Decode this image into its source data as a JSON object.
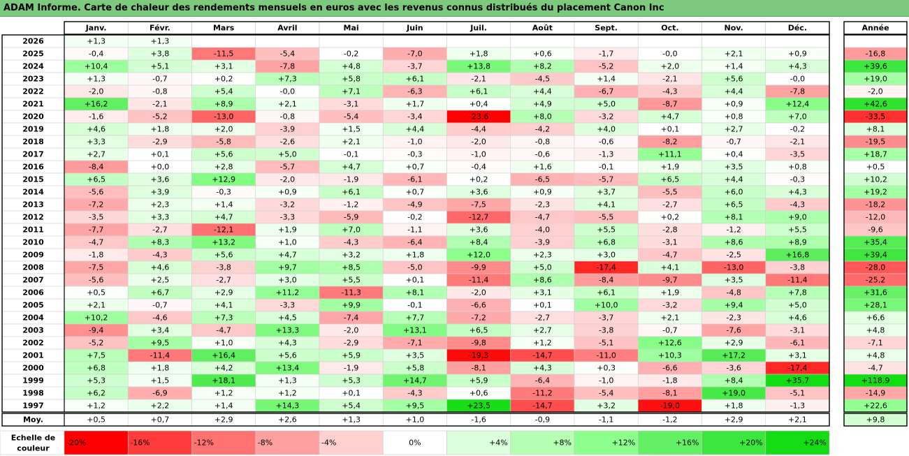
{
  "title": "ADAM Informe. Carte de chaleur des rendements mensuels en euros avec les revenus connus distribués du placement Canon Inc",
  "chart_data": {
    "type": "heatmap",
    "months": [
      "Janv.",
      "Févr.",
      "Mars",
      "Avril",
      "Mai",
      "Juin",
      "Juil.",
      "Août",
      "Sept.",
      "Oct.",
      "Nov.",
      "Déc."
    ],
    "year_column_label": "Année",
    "average_label": "Moy.",
    "rows": [
      {
        "year": "2026",
        "values": [
          "+1,3",
          "+1,3",
          null,
          null,
          null,
          null,
          null,
          null,
          null,
          null,
          null,
          null
        ],
        "annual": null
      },
      {
        "year": "2025",
        "values": [
          "-0,4",
          "+3,8",
          "-11,5",
          "-5,4",
          "-0,2",
          "-7,0",
          "+1,8",
          "+0,6",
          "-1,7",
          "-0,0",
          "+2,1",
          "+0,9"
        ],
        "annual": "-16,8"
      },
      {
        "year": "2024",
        "values": [
          "+10,4",
          "+5,1",
          "+3,1",
          "-7,8",
          "+4,8",
          "-3,7",
          "+13,8",
          "+8,2",
          "-5,2",
          "+2,0",
          "+1,4",
          "+4,3"
        ],
        "annual": "+39,6"
      },
      {
        "year": "2023",
        "values": [
          "+1,3",
          "-0,7",
          "+0,2",
          "+7,3",
          "+5,8",
          "+6,1",
          "-2,1",
          "-4,5",
          "+1,4",
          "-2,1",
          "+5,6",
          "-0,0"
        ],
        "annual": "+19,0"
      },
      {
        "year": "2022",
        "values": [
          "-2,0",
          "-0,8",
          "+5,4",
          "-0,0",
          "+7,1",
          "-6,3",
          "+6,1",
          "+4,4",
          "-6,7",
          "-4,3",
          "+4,4",
          "-7,8"
        ],
        "annual": "-2,0"
      },
      {
        "year": "2021",
        "values": [
          "+16,2",
          "-2,1",
          "+8,9",
          "+2,1",
          "-3,1",
          "+1,7",
          "+0,4",
          "+4,9",
          "+5,0",
          "-8,7",
          "+0,9",
          "+12,4"
        ],
        "annual": "+42,6"
      },
      {
        "year": "2020",
        "values": [
          "-1,6",
          "-5,2",
          "-13,0",
          "-0,8",
          "-5,4",
          "-3,4",
          "-23,6",
          "+8,0",
          "-3,2",
          "+4,7",
          "+0,8",
          "+7,0"
        ],
        "annual": "-33,5"
      },
      {
        "year": "2019",
        "values": [
          "+4,6",
          "+1,8",
          "+2,0",
          "-3,9",
          "+1,5",
          "+4,4",
          "-4,4",
          "-4,2",
          "+4,0",
          "+0,1",
          "+2,7",
          "-0,2"
        ],
        "annual": "+8,1"
      },
      {
        "year": "2018",
        "values": [
          "+3,3",
          "-2,9",
          "-5,8",
          "-2,6",
          "+2,1",
          "-1,0",
          "-2,0",
          "-0,8",
          "-0,6",
          "-8,2",
          "-0,7",
          "-2,1"
        ],
        "annual": "-19,5"
      },
      {
        "year": "2017",
        "values": [
          "+2,7",
          "+0,1",
          "+5,6",
          "+5,0",
          "-0,1",
          "-0,3",
          "-1,0",
          "-0,6",
          "-1,3",
          "+11,1",
          "+0,4",
          "-3,5"
        ],
        "annual": "+18,7"
      },
      {
        "year": "2016",
        "values": [
          "-8,4",
          "+0,0",
          "+2,8",
          "-5,7",
          "+4,7",
          "+0,7",
          "-0,4",
          "+1,6",
          "-0,1",
          "+1,9",
          "+3,5",
          "+0,8"
        ],
        "annual": "+0,5"
      },
      {
        "year": "2015",
        "values": [
          "+6,5",
          "+3,6",
          "+12,9",
          "-2,0",
          "-1,9",
          "-6,1",
          "+0,2",
          "-6,5",
          "-5,7",
          "+6,5",
          "+4,4",
          "-0,3"
        ],
        "annual": "+10,2"
      },
      {
        "year": "2014",
        "values": [
          "-5,6",
          "+3,9",
          "-0,3",
          "+0,9",
          "+6,1",
          "+0,7",
          "+3,6",
          "+0,9",
          "+3,7",
          "-5,5",
          "+6,0",
          "+4,3"
        ],
        "annual": "+19,2"
      },
      {
        "year": "2013",
        "values": [
          "-7,2",
          "+2,3",
          "+1,4",
          "-3,2",
          "-1,2",
          "-4,9",
          "-7,5",
          "-2,3",
          "+4,1",
          "-2,7",
          "+6,5",
          "-4,3"
        ],
        "annual": "-18,2"
      },
      {
        "year": "2012",
        "values": [
          "-3,5",
          "+3,3",
          "+4,7",
          "-3,3",
          "-5,9",
          "-0,2",
          "-12,7",
          "-4,7",
          "-5,5",
          "+0,2",
          "+8,1",
          "+9,0"
        ],
        "annual": "-12,0"
      },
      {
        "year": "2011",
        "values": [
          "-7,7",
          "-2,7",
          "-12,1",
          "+1,9",
          "+7,0",
          "-1,1",
          "+3,6",
          "-4,0",
          "+5,5",
          "-2,8",
          "-1,2",
          "+5,5"
        ],
        "annual": "-9,6"
      },
      {
        "year": "2010",
        "values": [
          "-4,7",
          "+8,3",
          "+13,2",
          "+1,0",
          "-4,3",
          "-6,4",
          "+8,4",
          "-3,9",
          "+6,8",
          "-3,1",
          "+8,6",
          "+8,9"
        ],
        "annual": "+35,4"
      },
      {
        "year": "2009",
        "values": [
          "-1,8",
          "-4,3",
          "+5,6",
          "+4,7",
          "+3,2",
          "+1,8",
          "+12,0",
          "+2,3",
          "+3,0",
          "-4,7",
          "-2,5",
          "+16,8"
        ],
        "annual": "+39,4"
      },
      {
        "year": "2008",
        "values": [
          "-7,5",
          "+4,6",
          "-3,8",
          "+9,7",
          "+8,5",
          "-5,0",
          "-9,9",
          "+5,0",
          "-17,4",
          "+4,1",
          "-13,0",
          "-3,8"
        ],
        "annual": "-28,0"
      },
      {
        "year": "2007",
        "values": [
          "-5,6",
          "+2,5",
          "-2,7",
          "+3,0",
          "+5,5",
          "+0,1",
          "-11,4",
          "+8,6",
          "-8,4",
          "-9,7",
          "+3,5",
          "-11,4"
        ],
        "annual": "-25,2"
      },
      {
        "year": "2006",
        "values": [
          "+0,5",
          "+6,7",
          "+2,9",
          "+11,2",
          "-11,3",
          "+8,1",
          "-2,0",
          "+3,1",
          "+6,1",
          "+1,9",
          "-4,8",
          "+7,8"
        ],
        "annual": "+31,6"
      },
      {
        "year": "2005",
        "values": [
          "+2,1",
          "-0,7",
          "+4,1",
          "-3,3",
          "+9,9",
          "-0,1",
          "-6,6",
          "+0,1",
          "+10,0",
          "-3,2",
          "+9,4",
          "+5,0"
        ],
        "annual": "+28,1"
      },
      {
        "year": "2004",
        "values": [
          "+10,2",
          "-4,6",
          "+7,3",
          "+4,5",
          "-7,4",
          "+7,7",
          "-7,2",
          "-2,7",
          "-3,7",
          "+2,1",
          "-2,3",
          "+4,6"
        ],
        "annual": "+6,6"
      },
      {
        "year": "2003",
        "values": [
          "-9,4",
          "+3,4",
          "-4,7",
          "+13,3",
          "-2,0",
          "+13,1",
          "+6,5",
          "+2,7",
          "-3,8",
          "-0,7",
          "-7,6",
          "-3,1"
        ],
        "annual": "+4,8"
      },
      {
        "year": "2002",
        "values": [
          "-5,2",
          "+9,5",
          "+1,0",
          "+4,3",
          "-2,9",
          "-7,1",
          "-9,8",
          "+1,2",
          "-5,1",
          "+12,6",
          "+2,9",
          "-6,1"
        ],
        "annual": "-7,1"
      },
      {
        "year": "2001",
        "values": [
          "+7,5",
          "-11,4",
          "+16,4",
          "+5,6",
          "+5,9",
          "+3,5",
          "-19,3",
          "-14,7",
          "-11,0",
          "+10,3",
          "+17,2",
          "+3,1"
        ],
        "annual": "+4,8"
      },
      {
        "year": "2000",
        "values": [
          "+6,8",
          "+1,8",
          "+4,2",
          "+13,4",
          "-1,9",
          "+5,8",
          "-8,1",
          "+4,3",
          "+0,3",
          "-6,6",
          "-3,6",
          "-17,4"
        ],
        "annual": "-4,7"
      },
      {
        "year": "1999",
        "values": [
          "+5,3",
          "+1,5",
          "+18,1",
          "+1,3",
          "+5,3",
          "+14,7",
          "+5,9",
          "-6,4",
          "-1,0",
          "-1,8",
          "+8,4",
          "+35,7"
        ],
        "annual": "+118,9"
      },
      {
        "year": "1998",
        "values": [
          "+6,2",
          "-6,9",
          "+1,2",
          "+1,2",
          "+0,1",
          "-4,3",
          "+0,6",
          "-11,2",
          "-5,4",
          "-8,1",
          "+19,0",
          "-5,1"
        ],
        "annual": "-14,9"
      },
      {
        "year": "1997",
        "values": [
          "+1,2",
          "+2,2",
          "+1,4",
          "+14,3",
          "+5,4",
          "+9,5",
          "+23,5",
          "-14,7",
          "+3,2",
          "-19,0",
          "+1,8",
          "-1,3"
        ],
        "annual": "+22,6"
      }
    ],
    "averages": [
      "+0,5",
      "+0,7",
      "+2,9",
      "+2,6",
      "+1,3",
      "+1,0",
      "-1,6",
      "-0,9",
      "-1,1",
      "-1,2",
      "+2,9",
      "+2,1"
    ],
    "average_annual": "+9,8",
    "scale_label": [
      "Echelle de",
      "couleur"
    ],
    "scale": [
      {
        "label": "-20%",
        "value": -20,
        "color": "#ff0000"
      },
      {
        "label": "-16%",
        "value": -16,
        "color": "#ff3b3b"
      },
      {
        "label": "-12%",
        "value": -12,
        "color": "#ff7272"
      },
      {
        "label": "-8%",
        "value": -8,
        "color": "#ffa0a0"
      },
      {
        "label": "-4%",
        "value": -4,
        "color": "#ffd0d0"
      },
      {
        "label": "0%",
        "value": 0,
        "color": "#ffffff"
      },
      {
        "label": "+4%",
        "value": 4,
        "color": "#dcffdc"
      },
      {
        "label": "+8%",
        "value": 8,
        "color": "#b4ffb4"
      },
      {
        "label": "+12%",
        "value": 12,
        "color": "#8cff8c"
      },
      {
        "label": "+16%",
        "value": 16,
        "color": "#64f064"
      },
      {
        "label": "+20%",
        "value": 20,
        "color": "#3ce63c"
      },
      {
        "label": "+24%",
        "value": 24,
        "color": "#14dc14"
      }
    ]
  }
}
